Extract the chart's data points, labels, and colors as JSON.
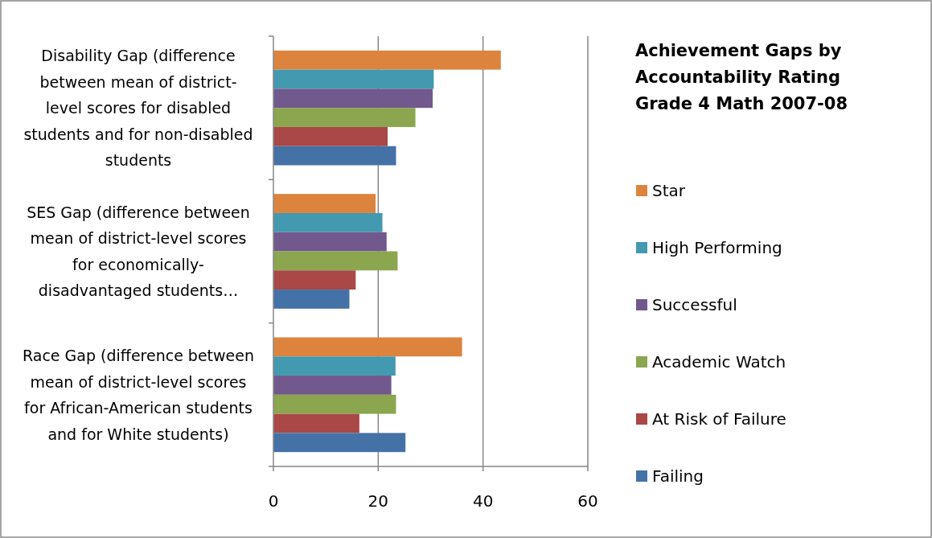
{
  "chart_data": {
    "type": "bar",
    "orientation": "horizontal",
    "title": "Achievement Gaps by Accountability Rating Grade 4 Math 2007-08",
    "categories": [
      "Disability Gap (difference between mean of district-level scores for disabled students and for non-disabled students",
      "SES Gap (difference between mean of district-level scores for economically-disadvantaged students…",
      "Race Gap (difference between mean of district-level scores for African-American students and for White students)"
    ],
    "series": [
      {
        "name": "Star",
        "color": "#dc843e",
        "values": [
          43.4,
          19.5,
          36.0
        ]
      },
      {
        "name": "High Performing",
        "color": "#4399b0",
        "values": [
          30.6,
          20.8,
          23.3
        ]
      },
      {
        "name": "Successful",
        "color": "#71598d",
        "values": [
          30.4,
          21.6,
          22.5
        ]
      },
      {
        "name": "Academic Watch",
        "color": "#8ba64f",
        "values": [
          27.1,
          23.7,
          23.4
        ]
      },
      {
        "name": "At Risk of Failure",
        "color": "#a94846",
        "values": [
          21.8,
          15.7,
          16.4
        ]
      },
      {
        "name": "Failing",
        "color": "#4472a6",
        "values": [
          23.4,
          14.5,
          25.2
        ]
      }
    ],
    "xlim": [
      0,
      60
    ],
    "xticks": [
      0,
      20,
      40,
      60
    ],
    "grid": "x",
    "legend": "right"
  }
}
